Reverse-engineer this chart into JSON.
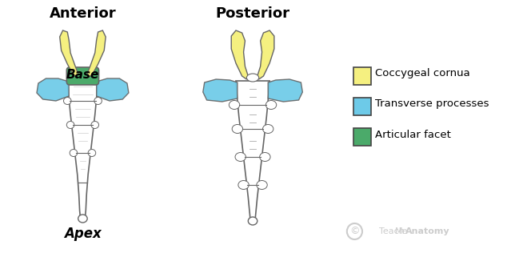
{
  "title_left": "Anterior",
  "title_right": "Posterior",
  "label_base": "Base",
  "label_apex": "Apex",
  "color_cornua": "#F5F080",
  "color_transverse": "#6DCAE8",
  "color_facet": "#4BAA6A",
  "color_bone_light": "#FFFFFF",
  "color_bone_mid": "#E8E8E8",
  "color_bone_outline": "#666666",
  "color_bg": "#FFFFFF",
  "legend_items": [
    {
      "label": "Coccygeal cornua",
      "color": "#F5F080"
    },
    {
      "label": "Transverse processes",
      "color": "#6DCAE8"
    },
    {
      "label": "Articular facet",
      "color": "#4BAA6A"
    }
  ],
  "watermark": "TeachMeAnatomy",
  "title_fontsize": 13,
  "label_fontsize": 11
}
